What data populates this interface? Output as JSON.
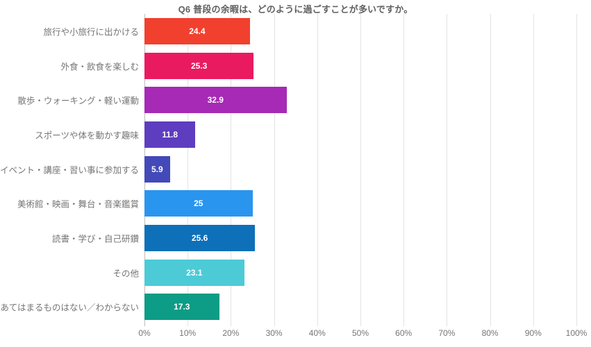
{
  "chart_data": {
    "type": "bar",
    "orientation": "horizontal",
    "title": "Q6 普段の余暇は、どのように過ごすことが多いですか。",
    "categories": [
      "旅行や小旅行に出かける",
      "外食・飲食を楽しむ",
      "散歩・ウォーキング・軽い運動",
      "スポーツや体を動かす趣味",
      "イベント・講座・習い事に参加する",
      "美術館・映画・舞台・音楽鑑賞",
      "読書・学び・自己研鑽",
      "その他",
      "あてはまるものはない／わからない"
    ],
    "values": [
      24.4,
      25.3,
      32.9,
      11.8,
      5.9,
      25,
      25.6,
      23.1,
      17.3
    ],
    "value_labels": [
      "24.4",
      "25.3",
      "32.9",
      "11.8",
      "5.9",
      "25",
      "25.6",
      "23.1",
      "17.3"
    ],
    "bar_colors": [
      "#f2402f",
      "#ea1a61",
      "#a62ab5",
      "#5f3dc0",
      "#4349b8",
      "#2a95ef",
      "#0d70b9",
      "#4ccbd7",
      "#0d9c85"
    ],
    "xlabel": "",
    "ylabel": "",
    "xlim": [
      0,
      100
    ],
    "x_ticks": [
      "0%",
      "10%",
      "20%",
      "30%",
      "40%",
      "50%",
      "60%",
      "70%",
      "80%",
      "90%",
      "100%"
    ],
    "grid": true,
    "legend": "none",
    "colors": {
      "title_text": "#5f5f5f",
      "label_text": "#757575",
      "value_text": "#ffffff",
      "gridline": "#e3e3e3",
      "axis_line": "#bdbdbd",
      "background": "#ffffff"
    }
  }
}
